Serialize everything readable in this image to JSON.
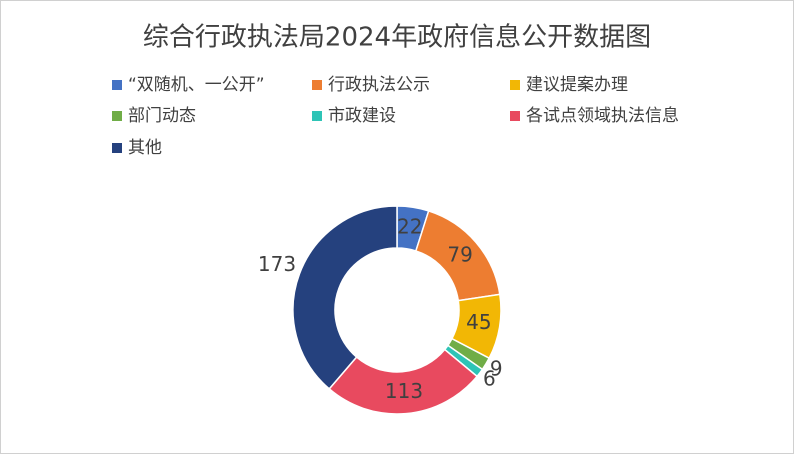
{
  "chart_data": {
    "type": "donut",
    "title": "综合行政执法局2024年政府信息公开数据图",
    "categories": [
      "“双随机、一公开”",
      "行政执法公示",
      "建议提案办理",
      "部门动态",
      "市政建设",
      "各试点领域执法信息",
      "其他"
    ],
    "values": [
      22,
      79,
      45,
      9,
      6,
      113,
      173
    ],
    "colors": [
      "#4472c4",
      "#ed7d31",
      "#f2b705",
      "#70ad47",
      "#2ec4b6",
      "#e84a5f",
      "#25417e"
    ],
    "legend": "top"
  }
}
